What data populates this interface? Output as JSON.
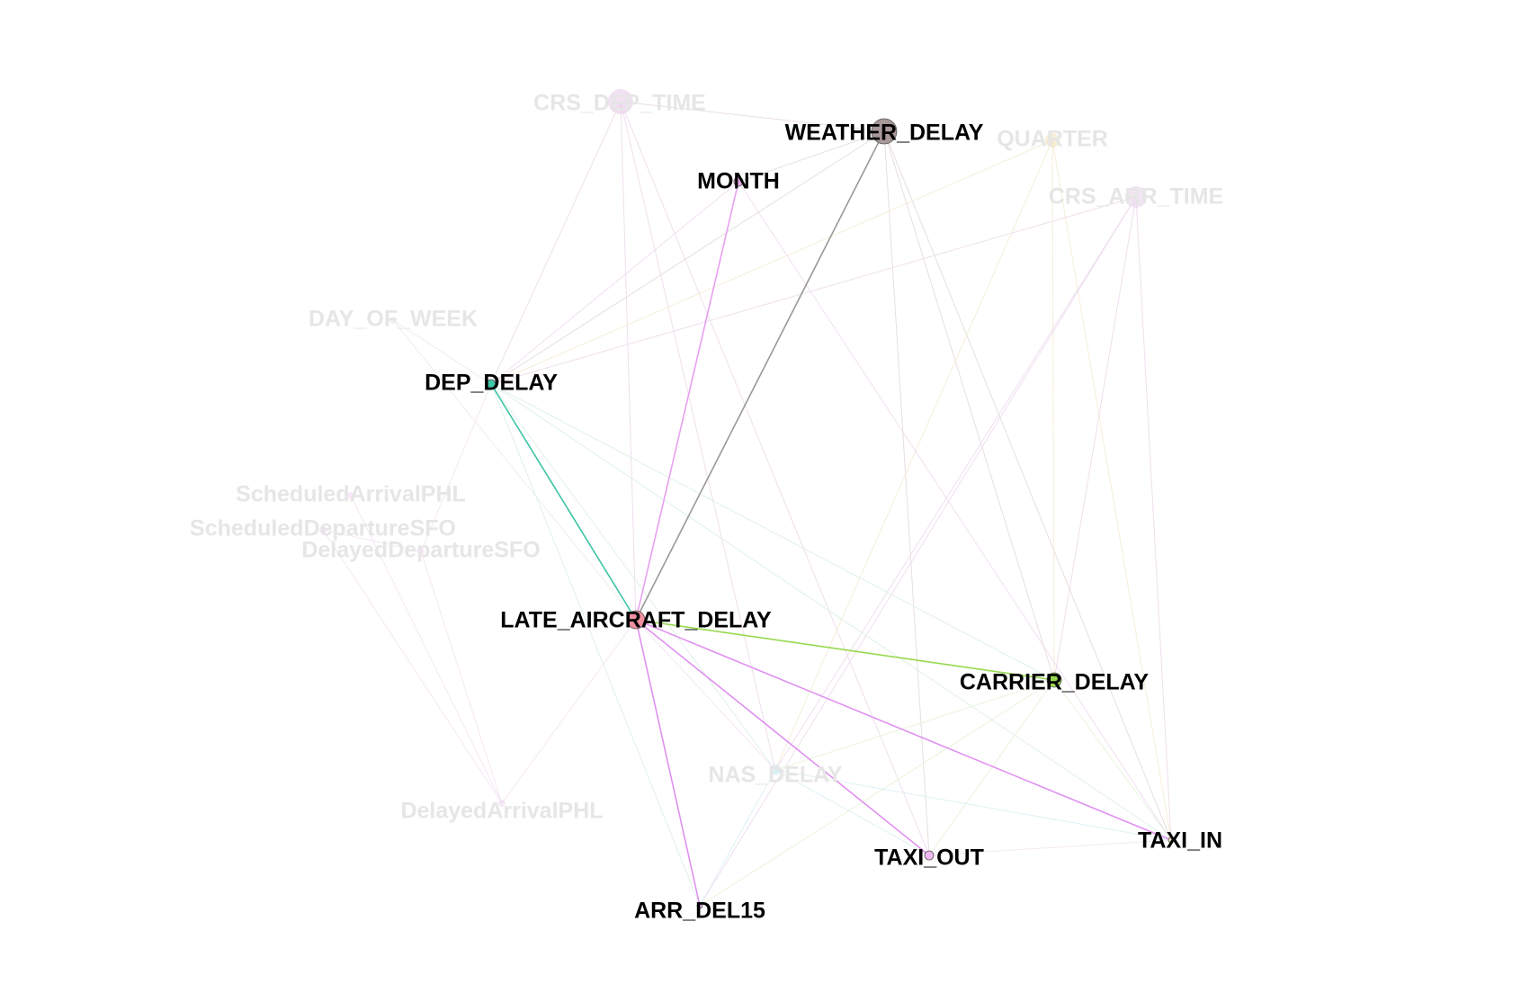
{
  "graph": {
    "nodes": [
      {
        "id": "crs_dep_time",
        "label": "CRS_DEP_TIME",
        "color": "#e8c8e8",
        "highlighted": false
      },
      {
        "id": "weather_delay",
        "label": "WEATHER_DELAY",
        "color": "#a89898",
        "highlighted": true
      },
      {
        "id": "quarter",
        "label": "QUARTER",
        "color": "#f0e0b8",
        "highlighted": false
      },
      {
        "id": "crs_arr_time",
        "label": "CRS_ARR_TIME",
        "color": "#e8d0e8",
        "highlighted": false
      },
      {
        "id": "month",
        "label": "MONTH",
        "color": "#e8a8e8",
        "highlighted": true
      },
      {
        "id": "day_of_week",
        "label": "DAY_OF_WEEK",
        "color": "#e8e8e8",
        "highlighted": false
      },
      {
        "id": "dep_delay",
        "label": "DEP_DELAY",
        "color": "#40c8a8",
        "highlighted": true
      },
      {
        "id": "scheduled_arrival_phl",
        "label": "ScheduledArrivalPHL",
        "color": "#f0d8f0",
        "highlighted": false
      },
      {
        "id": "scheduled_departure_sfo",
        "label": "ScheduledDepartureSFO",
        "color": "#f0d8f0",
        "highlighted": false
      },
      {
        "id": "delayed_departure_sfo",
        "label": "DelayedDepartureSFO",
        "color": "#f0d8f0",
        "highlighted": false
      },
      {
        "id": "late_aircraft_delay",
        "label": "LATE_AIRCRAFT_DELAY",
        "color": "#f090a0",
        "highlighted": true
      },
      {
        "id": "carrier_delay",
        "label": "CARRIER_DELAY",
        "color": "#98d850",
        "highlighted": true
      },
      {
        "id": "nas_delay",
        "label": "NAS_DELAY",
        "color": "#c8e8f0",
        "highlighted": false
      },
      {
        "id": "delayed_arrival_phl",
        "label": "DelayedArrivalPHL",
        "color": "#f0d8f0",
        "highlighted": false
      },
      {
        "id": "taxi_out",
        "label": "TAXI_OUT",
        "color": "#f0b8f0",
        "highlighted": true
      },
      {
        "id": "taxi_in",
        "label": "TAXI_IN",
        "color": "#f0e0c0",
        "highlighted": true
      },
      {
        "id": "arr_del15",
        "label": "ARR_DEL15",
        "color": "#f0b8f0",
        "highlighted": true
      }
    ],
    "edges": [
      {
        "from": "weather_delay",
        "to": "late_aircraft_delay",
        "color": "#999999",
        "highlighted": true
      },
      {
        "from": "dep_delay",
        "to": "late_aircraft_delay",
        "color": "#3cc4a4",
        "highlighted": true
      },
      {
        "from": "month",
        "to": "late_aircraft_delay",
        "color": "#e8a0f0",
        "highlighted": true
      },
      {
        "from": "late_aircraft_delay",
        "to": "carrier_delay",
        "color": "#98d850",
        "highlighted": true
      },
      {
        "from": "late_aircraft_delay",
        "to": "taxi_out",
        "color": "#e090f0",
        "highlighted": true
      },
      {
        "from": "late_aircraft_delay",
        "to": "taxi_in",
        "color": "#e090f0",
        "highlighted": true
      },
      {
        "from": "late_aircraft_delay",
        "to": "arr_del15",
        "color": "#e090f0",
        "highlighted": true
      },
      {
        "from": "crs_dep_time",
        "to": "weather_delay",
        "color": "#e8d8e8",
        "highlighted": false
      },
      {
        "from": "crs_dep_time",
        "to": "dep_delay",
        "color": "#ecdcec",
        "highlighted": false
      },
      {
        "from": "crs_dep_time",
        "to": "late_aircraft_delay",
        "color": "#ecdcec",
        "highlighted": false
      },
      {
        "from": "crs_dep_time",
        "to": "nas_delay",
        "color": "#ecdcec",
        "highlighted": false
      },
      {
        "from": "crs_dep_time",
        "to": "taxi_out",
        "color": "#ecdcec",
        "highlighted": false
      },
      {
        "from": "weather_delay",
        "to": "dep_delay",
        "color": "#e4dcdc",
        "highlighted": false
      },
      {
        "from": "weather_delay",
        "to": "carrier_delay",
        "color": "#e4dcdc",
        "highlighted": false
      },
      {
        "from": "weather_delay",
        "to": "taxi_out",
        "color": "#e4dcdc",
        "highlighted": false
      },
      {
        "from": "weather_delay",
        "to": "taxi_in",
        "color": "#e4dcdc",
        "highlighted": false
      },
      {
        "from": "weather_delay",
        "to": "month",
        "color": "#e4dcdc",
        "highlighted": false
      },
      {
        "from": "quarter",
        "to": "dep_delay",
        "color": "#f4ecd4",
        "highlighted": false
      },
      {
        "from": "quarter",
        "to": "nas_delay",
        "color": "#f4ecd4",
        "highlighted": false
      },
      {
        "from": "quarter",
        "to": "taxi_in",
        "color": "#f4ecd4",
        "highlighted": false
      },
      {
        "from": "quarter",
        "to": "carrier_delay",
        "color": "#f4ecd4",
        "highlighted": false
      },
      {
        "from": "crs_arr_time",
        "to": "dep_delay",
        "color": "#ecdcec",
        "highlighted": false
      },
      {
        "from": "crs_arr_time",
        "to": "nas_delay",
        "color": "#ecdcec",
        "highlighted": false
      },
      {
        "from": "crs_arr_time",
        "to": "taxi_in",
        "color": "#ecdcec",
        "highlighted": false
      },
      {
        "from": "crs_arr_time",
        "to": "carrier_delay",
        "color": "#ecdcec",
        "highlighted": false
      },
      {
        "from": "crs_arr_time",
        "to": "arr_del15",
        "color": "#ecdcec",
        "highlighted": false
      },
      {
        "from": "month",
        "to": "dep_delay",
        "color": "#f0dcf0",
        "highlighted": false
      },
      {
        "from": "month",
        "to": "taxi_in",
        "color": "#f0dcf0",
        "highlighted": false
      },
      {
        "from": "day_of_week",
        "to": "dep_delay",
        "color": "#ececec",
        "highlighted": false
      },
      {
        "from": "day_of_week",
        "to": "late_aircraft_delay",
        "color": "#ececec",
        "highlighted": false
      },
      {
        "from": "dep_delay",
        "to": "carrier_delay",
        "color": "#dcf0e8",
        "highlighted": false
      },
      {
        "from": "dep_delay",
        "to": "taxi_in",
        "color": "#dcf0e8",
        "highlighted": false
      },
      {
        "from": "dep_delay",
        "to": "nas_delay",
        "color": "#dcf0e8",
        "highlighted": false
      },
      {
        "from": "dep_delay",
        "to": "arr_del15",
        "color": "#dcf0e8",
        "highlighted": false
      },
      {
        "from": "scheduled_arrival_phl",
        "to": "delayed_arrival_phl",
        "color": "#f4e4f4",
        "highlighted": false
      },
      {
        "from": "scheduled_departure_sfo",
        "to": "delayed_arrival_phl",
        "color": "#f4e4f4",
        "highlighted": false
      },
      {
        "from": "delayed_departure_sfo",
        "to": "delayed_arrival_phl",
        "color": "#f4e4f4",
        "highlighted": false
      },
      {
        "from": "scheduled_departure_sfo",
        "to": "delayed_departure_sfo",
        "color": "#f4e4f4",
        "highlighted": false
      },
      {
        "from": "delayed_departure_sfo",
        "to": "dep_delay",
        "color": "#f4e4f4",
        "highlighted": false
      },
      {
        "from": "carrier_delay",
        "to": "nas_delay",
        "color": "#e4f4d8",
        "highlighted": false
      },
      {
        "from": "carrier_delay",
        "to": "taxi_out",
        "color": "#e4f4d8",
        "highlighted": false
      },
      {
        "from": "carrier_delay",
        "to": "taxi_in",
        "color": "#e4f4d8",
        "highlighted": false
      },
      {
        "from": "carrier_delay",
        "to": "arr_del15",
        "color": "#e4f4d8",
        "highlighted": false
      },
      {
        "from": "nas_delay",
        "to": "taxi_in",
        "color": "#dcf0f4",
        "highlighted": false
      },
      {
        "from": "nas_delay",
        "to": "taxi_out",
        "color": "#dcf0f4",
        "highlighted": false
      },
      {
        "from": "nas_delay",
        "to": "arr_del15",
        "color": "#dcf0f4",
        "highlighted": false
      },
      {
        "from": "taxi_out",
        "to": "taxi_in",
        "color": "#f4e4f4",
        "highlighted": false
      },
      {
        "from": "late_aircraft_delay",
        "to": "nas_delay",
        "color": "#f4e4f4",
        "highlighted": false
      },
      {
        "from": "delayed_arrival_phl",
        "to": "late_aircraft_delay",
        "color": "#f4e4f4",
        "highlighted": false
      }
    ]
  }
}
